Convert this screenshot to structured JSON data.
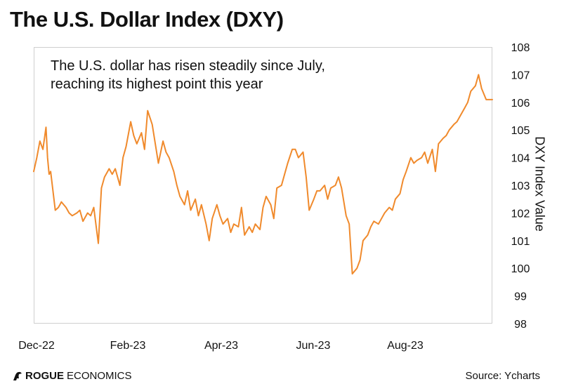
{
  "header": {
    "title": "The U.S. Dollar Index (DXY)"
  },
  "annotation": {
    "line1": "The U.S. dollar has risen steadily since July,",
    "line2": "reaching its highest point this year"
  },
  "footer": {
    "brand_bold": "ROGUE",
    "brand_regular": "ECONOMICS",
    "source": "Source: Ycharts"
  },
  "colors": {
    "series": "#f08a2c",
    "frame": "#cfcfcf",
    "text": "#111111"
  },
  "chart_data": {
    "type": "line",
    "title": "The U.S. Dollar Index (DXY)",
    "ylabel": "DXY Index Value",
    "xlabel": "",
    "ylim": [
      98,
      108
    ],
    "yticks": [
      "98",
      "99",
      "100",
      "101",
      "102",
      "103",
      "104",
      "105",
      "106",
      "107",
      "108"
    ],
    "y_axis_side": "right",
    "xlim": [
      "2022-12-05",
      "2023-09-29"
    ],
    "xticks": [
      {
        "label": "Dec-22",
        "x": "2022-12-01"
      },
      {
        "label": "Feb-23",
        "x": "2023-02-01"
      },
      {
        "label": "Apr-23",
        "x": "2023-04-01"
      },
      {
        "label": "Jun-23",
        "x": "2023-06-01"
      },
      {
        "label": "Aug-23",
        "x": "2023-08-01"
      }
    ],
    "grid": false,
    "legend": "none",
    "series": [
      {
        "x": [
          "2022-12-05",
          "2022-12-07",
          "2022-12-09",
          "2022-12-11",
          "2022-12-13",
          "2022-12-14",
          "2022-12-15",
          "2022-12-16",
          "2022-12-19",
          "2022-12-21",
          "2022-12-22",
          "2022-12-23",
          "2022-12-26",
          "2022-12-28",
          "2022-12-30",
          "2023-01-02",
          "2023-01-04",
          "2023-01-06",
          "2023-01-09",
          "2023-01-11",
          "2023-01-13",
          "2023-01-16",
          "2023-01-18",
          "2023-01-20",
          "2023-01-23",
          "2023-01-25",
          "2023-01-27",
          "2023-01-30",
          "2023-02-01",
          "2023-02-03",
          "2023-02-06",
          "2023-02-08",
          "2023-02-10",
          "2023-02-13",
          "2023-02-15",
          "2023-02-17",
          "2023-02-20",
          "2023-02-22",
          "2023-02-24",
          "2023-02-27",
          "2023-03-01",
          "2023-03-03",
          "2023-03-06",
          "2023-03-08",
          "2023-03-10",
          "2023-03-13",
          "2023-03-15",
          "2023-03-17",
          "2023-03-20",
          "2023-03-22",
          "2023-03-24",
          "2023-03-27",
          "2023-03-29",
          "2023-03-31",
          "2023-04-03",
          "2023-04-05",
          "2023-04-07",
          "2023-04-10",
          "2023-04-12",
          "2023-04-14",
          "2023-04-17",
          "2023-04-19",
          "2023-04-21",
          "2023-04-24",
          "2023-04-26",
          "2023-04-28",
          "2023-05-01",
          "2023-05-03",
          "2023-05-05",
          "2023-05-08",
          "2023-05-10",
          "2023-05-12",
          "2023-05-15",
          "2023-05-17",
          "2023-05-19",
          "2023-05-22",
          "2023-05-24",
          "2023-05-26",
          "2023-05-29",
          "2023-05-31",
          "2023-06-02",
          "2023-06-05",
          "2023-06-07",
          "2023-06-09",
          "2023-06-12",
          "2023-06-14",
          "2023-06-16",
          "2023-06-19",
          "2023-06-21",
          "2023-06-23",
          "2023-06-26",
          "2023-06-28",
          "2023-06-30",
          "2023-07-03",
          "2023-07-05",
          "2023-07-07",
          "2023-07-10",
          "2023-07-12",
          "2023-07-14",
          "2023-07-17",
          "2023-07-19",
          "2023-07-21",
          "2023-07-24",
          "2023-07-26",
          "2023-07-28",
          "2023-07-31",
          "2023-08-02",
          "2023-08-04",
          "2023-08-07",
          "2023-08-09",
          "2023-08-11",
          "2023-08-14",
          "2023-08-16",
          "2023-08-18",
          "2023-08-21",
          "2023-08-23",
          "2023-08-25",
          "2023-08-28",
          "2023-08-30",
          "2023-09-01",
          "2023-09-04",
          "2023-09-06",
          "2023-09-08",
          "2023-09-11",
          "2023-09-13",
          "2023-09-15",
          "2023-09-18",
          "2023-09-20",
          "2023-09-22",
          "2023-09-25",
          "2023-09-27",
          "2023-09-29"
        ],
        "values": [
          103.5,
          104.0,
          104.6,
          104.3,
          105.1,
          104.0,
          103.4,
          103.5,
          102.1,
          102.2,
          102.3,
          102.4,
          102.2,
          102.0,
          101.9,
          102.0,
          102.1,
          101.7,
          102.0,
          101.9,
          102.2,
          100.9,
          102.9,
          103.3,
          103.6,
          103.4,
          103.6,
          103.0,
          104.0,
          104.4,
          105.3,
          104.8,
          104.5,
          104.9,
          104.3,
          105.7,
          105.2,
          104.5,
          103.8,
          104.6,
          104.2,
          104.0,
          103.5,
          103.0,
          102.6,
          102.3,
          102.8,
          102.1,
          102.5,
          101.9,
          102.3,
          101.6,
          101.0,
          101.8,
          102.3,
          101.9,
          101.6,
          101.8,
          101.3,
          101.6,
          101.5,
          102.2,
          101.2,
          101.5,
          101.3,
          101.6,
          101.4,
          102.2,
          102.6,
          102.3,
          101.8,
          102.9,
          103.0,
          103.4,
          103.8,
          104.3,
          104.3,
          104.0,
          104.2,
          103.3,
          102.1,
          102.5,
          102.8,
          102.8,
          103.0,
          102.5,
          102.9,
          103.0,
          103.3,
          102.9,
          101.9,
          101.6,
          99.8,
          100.0,
          100.3,
          101.0,
          101.2,
          101.5,
          101.7,
          101.6,
          101.8,
          102.0,
          102.2,
          102.1,
          102.5,
          102.7,
          103.2,
          103.5,
          104.0,
          103.8,
          103.9,
          104.0,
          104.2,
          103.8,
          104.3,
          103.5,
          104.5,
          104.7,
          104.8,
          105.0,
          105.2,
          105.3,
          105.5,
          105.8,
          106.0,
          106.4,
          106.6,
          107.0,
          106.5,
          106.1,
          106.1,
          106.1
        ]
      }
    ]
  }
}
